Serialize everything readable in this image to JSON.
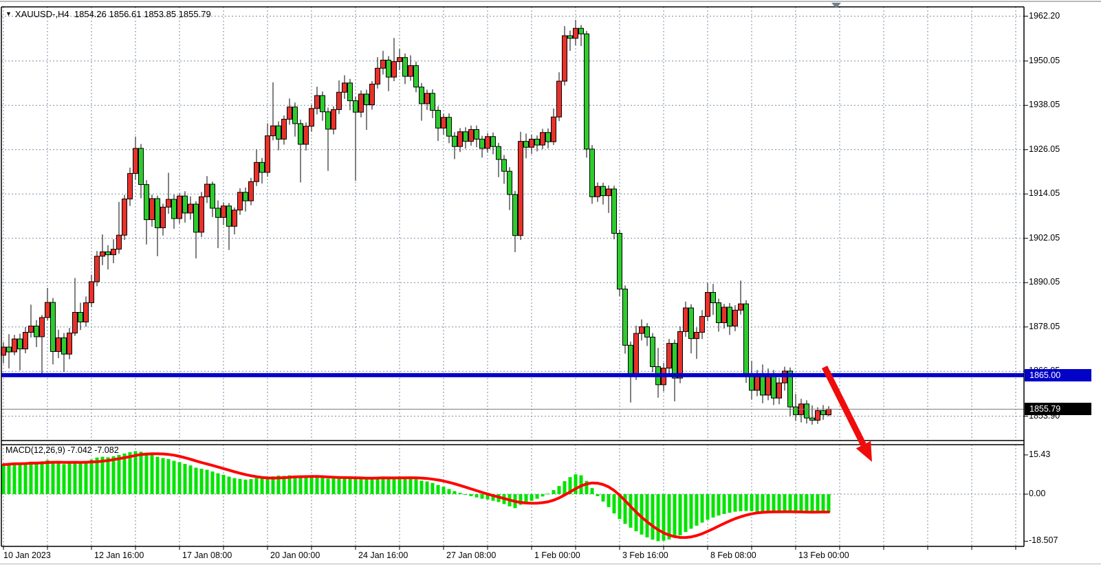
{
  "title": {
    "text": "XAUUSD-,H4  1854.26 1856.61 1853.85 1855.79"
  },
  "chart_data": {
    "type": "candlestick",
    "symbol": "XAUUSD",
    "timeframe": "H4",
    "ohlc_display": {
      "open": "1854.26",
      "high": "1856.61",
      "low": "1853.85",
      "close": "1855.79"
    },
    "price_axis_labels": [
      "1962.20",
      "1950.05",
      "1938.05",
      "1926.05",
      "1914.05",
      "1902.05",
      "1890.05",
      "1878.05",
      "1866.05",
      "1853.90"
    ],
    "price_axis_values": [
      1962.2,
      1950.05,
      1938.05,
      1926.05,
      1914.05,
      1902.05,
      1890.05,
      1878.05,
      1866.05,
      1853.9
    ],
    "time_axis_labels": [
      "10 Jan 2023",
      "12 Jan 16:00",
      "17 Jan 08:00",
      "20 Jan 00:00",
      "24 Jan 16:00",
      "27 Jan 08:00",
      "1 Feb 00:00",
      "3 Feb 16:00",
      "8 Feb 08:00",
      "13 Feb 00:00"
    ],
    "ylim": [
      1849.0,
      1964.5
    ],
    "grid": true,
    "hline": {
      "value": 1865.0,
      "label": "1865.00",
      "color": "#0202c8"
    },
    "last_price": {
      "value": 1855.79,
      "label": "1855.79"
    },
    "colors": {
      "up_candle": "#e8312a",
      "down_candle": "#2ecc2e",
      "wick": "#000000",
      "macd_bar": "#00e400",
      "macd_signal": "#ff0000",
      "grid": "#7a8aa0",
      "hline": "#0202c8",
      "arrow": "#f00c0c",
      "marker": "#708090"
    },
    "candles": [
      [
        1870.4,
        1873.9,
        1868.2,
        1872.6
      ],
      [
        1872.6,
        1876.1,
        1866.8,
        1871.3
      ],
      [
        1871.3,
        1875.9,
        1870.4,
        1874.8
      ],
      [
        1874.8,
        1876.2,
        1866.3,
        1872.1
      ],
      [
        1872.1,
        1878.0,
        1870.9,
        1876.6
      ],
      [
        1876.6,
        1884.1,
        1875.2,
        1878.3
      ],
      [
        1878.3,
        1879.9,
        1872.6,
        1875.4
      ],
      [
        1875.4,
        1881.3,
        1864.9,
        1880.6
      ],
      [
        1880.6,
        1888.6,
        1879.8,
        1884.7
      ],
      [
        1884.7,
        1885.9,
        1867.9,
        1871.4
      ],
      [
        1871.4,
        1877.3,
        1869.6,
        1875.1
      ],
      [
        1875.1,
        1876.4,
        1865.9,
        1870.7
      ],
      [
        1870.7,
        1877.8,
        1869.3,
        1876.4
      ],
      [
        1876.4,
        1891.3,
        1875.6,
        1882.0
      ],
      [
        1882.0,
        1884.6,
        1877.2,
        1879.4
      ],
      [
        1879.4,
        1886.3,
        1878.1,
        1884.6
      ],
      [
        1884.6,
        1892.2,
        1883.4,
        1890.3
      ],
      [
        1890.3,
        1898.6,
        1889.1,
        1897.2
      ],
      [
        1897.2,
        1903.1,
        1894.8,
        1898.4
      ],
      [
        1898.4,
        1900.2,
        1893.6,
        1897.6
      ],
      [
        1897.6,
        1901.8,
        1895.3,
        1899.1
      ],
      [
        1899.1,
        1911.9,
        1897.9,
        1902.9
      ],
      [
        1902.9,
        1913.8,
        1901.6,
        1912.7
      ],
      [
        1912.7,
        1921.2,
        1910.8,
        1919.6
      ],
      [
        1919.6,
        1929.6,
        1917.9,
        1926.4
      ],
      [
        1926.4,
        1927.6,
        1912.9,
        1916.6
      ],
      [
        1916.6,
        1917.8,
        1900.4,
        1907.1
      ],
      [
        1907.1,
        1913.9,
        1905.2,
        1912.8
      ],
      [
        1912.8,
        1913.6,
        1897.2,
        1904.9
      ],
      [
        1904.9,
        1911.4,
        1902.8,
        1910.5
      ],
      [
        1910.5,
        1919.8,
        1908.7,
        1912.6
      ],
      [
        1912.6,
        1913.9,
        1904.6,
        1907.4
      ],
      [
        1907.4,
        1914.2,
        1906.1,
        1913.5
      ],
      [
        1913.5,
        1914.8,
        1906.3,
        1908.9
      ],
      [
        1908.9,
        1913.4,
        1907.1,
        1911.3
      ],
      [
        1911.3,
        1912.1,
        1896.6,
        1903.7
      ],
      [
        1903.7,
        1914.6,
        1902.4,
        1913.3
      ],
      [
        1913.3,
        1918.9,
        1911.6,
        1916.7
      ],
      [
        1916.7,
        1917.4,
        1907.8,
        1910.2
      ],
      [
        1910.2,
        1912.3,
        1899.4,
        1907.7
      ],
      [
        1907.7,
        1911.8,
        1905.6,
        1910.8
      ],
      [
        1910.8,
        1911.6,
        1898.9,
        1905.3
      ],
      [
        1905.3,
        1910.4,
        1903.1,
        1909.7
      ],
      [
        1909.7,
        1915.6,
        1908.4,
        1914.5
      ],
      [
        1914.5,
        1915.8,
        1909.3,
        1912.2
      ],
      [
        1912.2,
        1918.4,
        1911.0,
        1917.4
      ],
      [
        1917.4,
        1926.1,
        1916.2,
        1922.6
      ],
      [
        1922.6,
        1923.8,
        1916.9,
        1919.9
      ],
      [
        1919.9,
        1933.2,
        1918.7,
        1929.8
      ],
      [
        1929.8,
        1944.3,
        1928.6,
        1932.5
      ],
      [
        1932.5,
        1933.7,
        1925.9,
        1928.9
      ],
      [
        1928.9,
        1935.3,
        1927.4,
        1934.3
      ],
      [
        1934.3,
        1939.9,
        1932.8,
        1937.6
      ],
      [
        1937.6,
        1938.8,
        1929.6,
        1933.1
      ],
      [
        1933.1,
        1934.2,
        1917.2,
        1927.5
      ],
      [
        1927.5,
        1933.4,
        1925.8,
        1932.4
      ],
      [
        1932.4,
        1938.2,
        1930.9,
        1937.2
      ],
      [
        1937.2,
        1943.1,
        1935.6,
        1940.7
      ],
      [
        1940.7,
        1941.8,
        1933.9,
        1936.3
      ],
      [
        1936.3,
        1937.4,
        1920.3,
        1931.6
      ],
      [
        1931.6,
        1937.8,
        1930.2,
        1936.9
      ],
      [
        1936.9,
        1944.8,
        1935.7,
        1941.6
      ],
      [
        1941.6,
        1946.2,
        1939.8,
        1944.1
      ],
      [
        1944.1,
        1945.2,
        1936.7,
        1939.3
      ],
      [
        1939.3,
        1940.4,
        1917.6,
        1936.2
      ],
      [
        1936.2,
        1942.1,
        1934.8,
        1941.1
      ],
      [
        1941.1,
        1942.3,
        1931.4,
        1938.2
      ],
      [
        1938.2,
        1944.6,
        1936.9,
        1943.8
      ],
      [
        1943.8,
        1951.1,
        1942.6,
        1948.1
      ],
      [
        1948.1,
        1952.8,
        1946.4,
        1950.3
      ],
      [
        1950.3,
        1951.4,
        1941.9,
        1945.7
      ],
      [
        1945.7,
        1956.3,
        1944.6,
        1949.9
      ],
      [
        1949.9,
        1953.3,
        1947.6,
        1951.0
      ],
      [
        1951.0,
        1952.1,
        1943.8,
        1945.9
      ],
      [
        1945.9,
        1951.6,
        1944.7,
        1948.8
      ],
      [
        1948.8,
        1949.9,
        1941.6,
        1943.0
      ],
      [
        1943.0,
        1944.1,
        1933.9,
        1938.5
      ],
      [
        1938.5,
        1942.3,
        1936.8,
        1941.3
      ],
      [
        1941.3,
        1942.4,
        1934.6,
        1936.7
      ],
      [
        1936.7,
        1937.8,
        1928.4,
        1931.9
      ],
      [
        1931.9,
        1935.8,
        1930.1,
        1934.8
      ],
      [
        1934.8,
        1935.9,
        1927.8,
        1929.7
      ],
      [
        1929.7,
        1930.8,
        1923.5,
        1926.9
      ],
      [
        1926.9,
        1931.9,
        1925.4,
        1930.9
      ],
      [
        1930.9,
        1932.1,
        1926.3,
        1928.3
      ],
      [
        1928.3,
        1932.6,
        1927.1,
        1931.5
      ],
      [
        1931.5,
        1932.6,
        1926.7,
        1928.9
      ],
      [
        1928.9,
        1929.8,
        1923.9,
        1926.4
      ],
      [
        1926.4,
        1930.6,
        1925.2,
        1929.6
      ],
      [
        1929.6,
        1930.7,
        1924.8,
        1926.9
      ],
      [
        1926.9,
        1927.9,
        1918.6,
        1923.4
      ],
      [
        1923.4,
        1924.6,
        1916.8,
        1920.2
      ],
      [
        1920.2,
        1921.3,
        1909.7,
        1913.9
      ],
      [
        1913.9,
        1914.9,
        1898.3,
        1902.8
      ],
      [
        1902.8,
        1930.9,
        1901.6,
        1928.3
      ],
      [
        1928.3,
        1930.4,
        1923.7,
        1926.7
      ],
      [
        1926.7,
        1930.1,
        1924.9,
        1928.9
      ],
      [
        1928.9,
        1929.9,
        1925.6,
        1927.3
      ],
      [
        1927.3,
        1931.7,
        1926.2,
        1930.7
      ],
      [
        1930.7,
        1931.8,
        1926.4,
        1928.2
      ],
      [
        1928.2,
        1937.2,
        1927.3,
        1934.9
      ],
      [
        1934.9,
        1947.0,
        1933.8,
        1944.6
      ],
      [
        1944.6,
        1959.5,
        1943.4,
        1956.9
      ],
      [
        1956.9,
        1958.3,
        1952.8,
        1956.2
      ],
      [
        1956.2,
        1961.2,
        1954.3,
        1958.9
      ],
      [
        1958.9,
        1959.8,
        1954.1,
        1957.4
      ],
      [
        1957.4,
        1958.2,
        1923.9,
        1926.2
      ],
      [
        1926.2,
        1927.3,
        1911.4,
        1913.3
      ],
      [
        1913.3,
        1917.2,
        1911.9,
        1916.1
      ],
      [
        1916.1,
        1917.1,
        1911.2,
        1913.6
      ],
      [
        1913.6,
        1916.4,
        1908.9,
        1915.4
      ],
      [
        1915.4,
        1916.3,
        1901.8,
        1903.4
      ],
      [
        1903.4,
        1904.4,
        1886.4,
        1888.3
      ],
      [
        1888.3,
        1889.3,
        1870.8,
        1873.1
      ],
      [
        1873.1,
        1874.1,
        1857.6,
        1865.4
      ],
      [
        1865.4,
        1878.4,
        1863.7,
        1876.3
      ],
      [
        1876.3,
        1880.1,
        1874.4,
        1878.1
      ],
      [
        1878.1,
        1879.1,
        1872.9,
        1875.3
      ],
      [
        1875.3,
        1876.4,
        1865.8,
        1867.3
      ],
      [
        1867.3,
        1872.4,
        1858.9,
        1862.4
      ],
      [
        1862.4,
        1868.3,
        1860.6,
        1866.9
      ],
      [
        1866.9,
        1874.8,
        1865.3,
        1873.6
      ],
      [
        1873.6,
        1874.6,
        1857.9,
        1864.2
      ],
      [
        1864.2,
        1878.2,
        1862.8,
        1876.8
      ],
      [
        1876.8,
        1884.9,
        1875.4,
        1883.2
      ],
      [
        1883.2,
        1884.2,
        1870.9,
        1874.9
      ],
      [
        1874.9,
        1877.9,
        1869.4,
        1876.6
      ],
      [
        1876.6,
        1882.6,
        1874.8,
        1880.9
      ],
      [
        1880.9,
        1889.9,
        1879.6,
        1887.4
      ],
      [
        1887.4,
        1889.7,
        1881.3,
        1884.6
      ],
      [
        1884.6,
        1885.7,
        1876.8,
        1879.2
      ],
      [
        1879.2,
        1884.3,
        1877.6,
        1883.4
      ],
      [
        1883.4,
        1884.5,
        1875.9,
        1878.3
      ],
      [
        1878.3,
        1883.9,
        1876.9,
        1882.6
      ],
      [
        1882.6,
        1890.6,
        1881.4,
        1884.3
      ],
      [
        1884.3,
        1885.3,
        1862.9,
        1864.8
      ],
      [
        1864.8,
        1868.9,
        1858.4,
        1860.9
      ],
      [
        1860.9,
        1866.4,
        1859.3,
        1865.2
      ],
      [
        1865.2,
        1867.9,
        1857.4,
        1859.6
      ],
      [
        1859.6,
        1866.8,
        1858.2,
        1865.4
      ],
      [
        1865.4,
        1866.4,
        1856.9,
        1858.8
      ],
      [
        1858.8,
        1864.3,
        1857.1,
        1862.9
      ],
      [
        1862.9,
        1867.3,
        1860.8,
        1866.1
      ],
      [
        1866.1,
        1867.1,
        1853.9,
        1856.4
      ],
      [
        1856.4,
        1859.9,
        1852.6,
        1854.3
      ],
      [
        1854.3,
        1858.6,
        1852.2,
        1857.2
      ],
      [
        1857.2,
        1858.2,
        1851.9,
        1853.4
      ],
      [
        1853.4,
        1856.8,
        1851.6,
        1852.8
      ],
      [
        1852.8,
        1856.3,
        1851.8,
        1855.4
      ],
      [
        1855.4,
        1856.9,
        1852.9,
        1854.3
      ],
      [
        1854.26,
        1856.61,
        1853.85,
        1855.79
      ]
    ],
    "macd": {
      "label": "MACD(12,26,9) -7.042 -7.082",
      "values_display": [
        "-7.042",
        "-7.082"
      ],
      "axis_labels": [
        "15.43",
        "0.00",
        "-18.507"
      ],
      "axis_values": [
        15.43,
        0.0,
        -18.507
      ],
      "histogram": [
        11.6,
        11.9,
        12.3,
        12.0,
        12.4,
        12.8,
        12.5,
        12.9,
        13.4,
        12.6,
        12.2,
        11.8,
        12.1,
        12.6,
        12.4,
        12.9,
        13.6,
        14.4,
        14.7,
        14.5,
        14.9,
        15.4,
        16.0,
        16.5,
        16.9,
        16.7,
        16.3,
        15.6,
        14.7,
        14.2,
        13.8,
        13.1,
        12.6,
        11.9,
        11.3,
        10.4,
        10.0,
        9.6,
        8.9,
        8.2,
        7.6,
        6.9,
        6.3,
        6.0,
        5.7,
        5.9,
        6.3,
        6.2,
        6.6,
        7.0,
        7.3,
        7.2,
        7.4,
        7.1,
        6.7,
        6.5,
        6.6,
        6.8,
        6.5,
        6.1,
        6.2,
        6.5,
        6.7,
        6.4,
        6.0,
        6.2,
        6.1,
        6.3,
        6.6,
        6.8,
        6.4,
        6.6,
        6.7,
        6.3,
        6.4,
        5.9,
        5.3,
        5.0,
        4.4,
        3.6,
        2.9,
        2.0,
        1.2,
        0.5,
        -0.2,
        -0.8,
        -1.3,
        -1.8,
        -2.1,
        -2.6,
        -3.1,
        -3.9,
        -4.8,
        -5.5,
        -4.2,
        -3.4,
        -2.6,
        -1.8,
        -0.9,
        0.2,
        1.6,
        3.2,
        5.1,
        6.7,
        7.8,
        7.4,
        5.2,
        2.4,
        -0.8,
        -2.9,
        -5.1,
        -7.6,
        -9.8,
        -11.7,
        -13.2,
        -14.6,
        -15.9,
        -17.0,
        -17.9,
        -18.5,
        -18.3,
        -17.8,
        -17.1,
        -16.2,
        -14.9,
        -13.6,
        -12.4,
        -11.2,
        -10.1,
        -9.2,
        -8.4,
        -7.8,
        -7.3,
        -6.9,
        -6.7,
        -6.6,
        -6.7,
        -6.9,
        -7.1,
        -7.3,
        -7.2,
        -7.0,
        -6.8,
        -6.7,
        -6.9,
        -7.2,
        -7.4,
        -7.3,
        -7.1,
        -6.9,
        -7.042
      ]
    }
  },
  "annotations": {
    "arrow": {
      "meaning": "bearish-continuation-arrow",
      "color": "#f00c0c"
    },
    "shift_marker": {
      "meaning": "chart-shift-marker",
      "color": "#708090"
    }
  }
}
